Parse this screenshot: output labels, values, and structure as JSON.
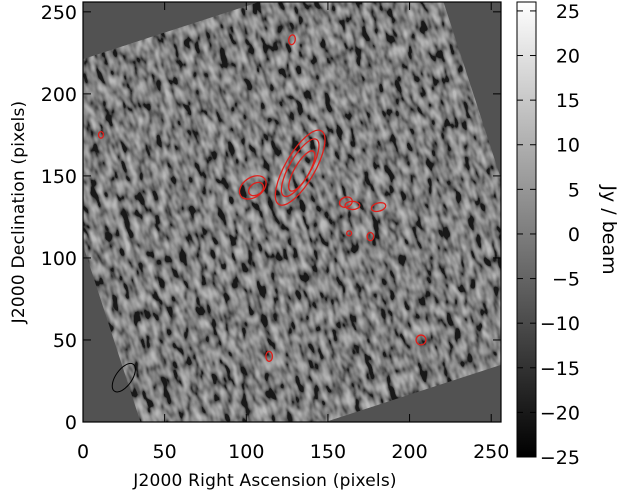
{
  "chart_data": {
    "type": "heatmap",
    "title": "",
    "xlabel": "J2000 Right Ascension (pixels)",
    "ylabel": "J2000 Declination (pixels)",
    "xlim": [
      0,
      256
    ],
    "ylim": [
      0,
      256
    ],
    "xticks": [
      0,
      50,
      100,
      150,
      200,
      250
    ],
    "yticks": [
      0,
      50,
      100,
      150,
      200,
      250
    ],
    "grid": false,
    "colormap": "grayscale",
    "colorbar": {
      "label": "Jy / beam",
      "range": [
        -25,
        26
      ],
      "ticks": [
        25,
        20,
        15,
        10,
        5,
        0,
        -5,
        -10,
        -15,
        -20,
        -25
      ]
    },
    "contour_color": "#e0201b",
    "beam_color": "#000000",
    "beam": {
      "x": 25,
      "y": 27,
      "major": 10,
      "minor": 5,
      "angle_deg": 55
    },
    "contours": [
      {
        "x": 128,
        "y": 233,
        "rx": 2,
        "ry": 3,
        "angle": 10
      },
      {
        "x": 11,
        "y": 175,
        "rx": 1.5,
        "ry": 2,
        "angle": 0
      },
      {
        "x": 104,
        "y": 143,
        "rx": 9,
        "ry": 6,
        "angle": -35
      },
      {
        "x": 106,
        "y": 142,
        "rx": 5,
        "ry": 3.5,
        "angle": -35
      },
      {
        "x": 133,
        "y": 155,
        "rx": 26,
        "ry": 9,
        "angle": -60
      },
      {
        "x": 133,
        "y": 155,
        "rx": 20,
        "ry": 6.5,
        "angle": -60
      },
      {
        "x": 134,
        "y": 153,
        "rx": 14,
        "ry": 4.5,
        "angle": -60
      },
      {
        "x": 161,
        "y": 134,
        "rx": 4,
        "ry": 3,
        "angle": -20
      },
      {
        "x": 165,
        "y": 132,
        "rx": 4.5,
        "ry": 2.5,
        "angle": 0
      },
      {
        "x": 181,
        "y": 131,
        "rx": 4.5,
        "ry": 2.5,
        "angle": -15
      },
      {
        "x": 176,
        "y": 113,
        "rx": 2,
        "ry": 2.5,
        "angle": 0
      },
      {
        "x": 163,
        "y": 115,
        "rx": 1.5,
        "ry": 1.5,
        "angle": 0
      },
      {
        "x": 114,
        "y": 40,
        "rx": 2,
        "ry": 3,
        "angle": 0
      },
      {
        "x": 207,
        "y": 50,
        "rx": 3,
        "ry": 3,
        "angle": 0
      }
    ]
  }
}
